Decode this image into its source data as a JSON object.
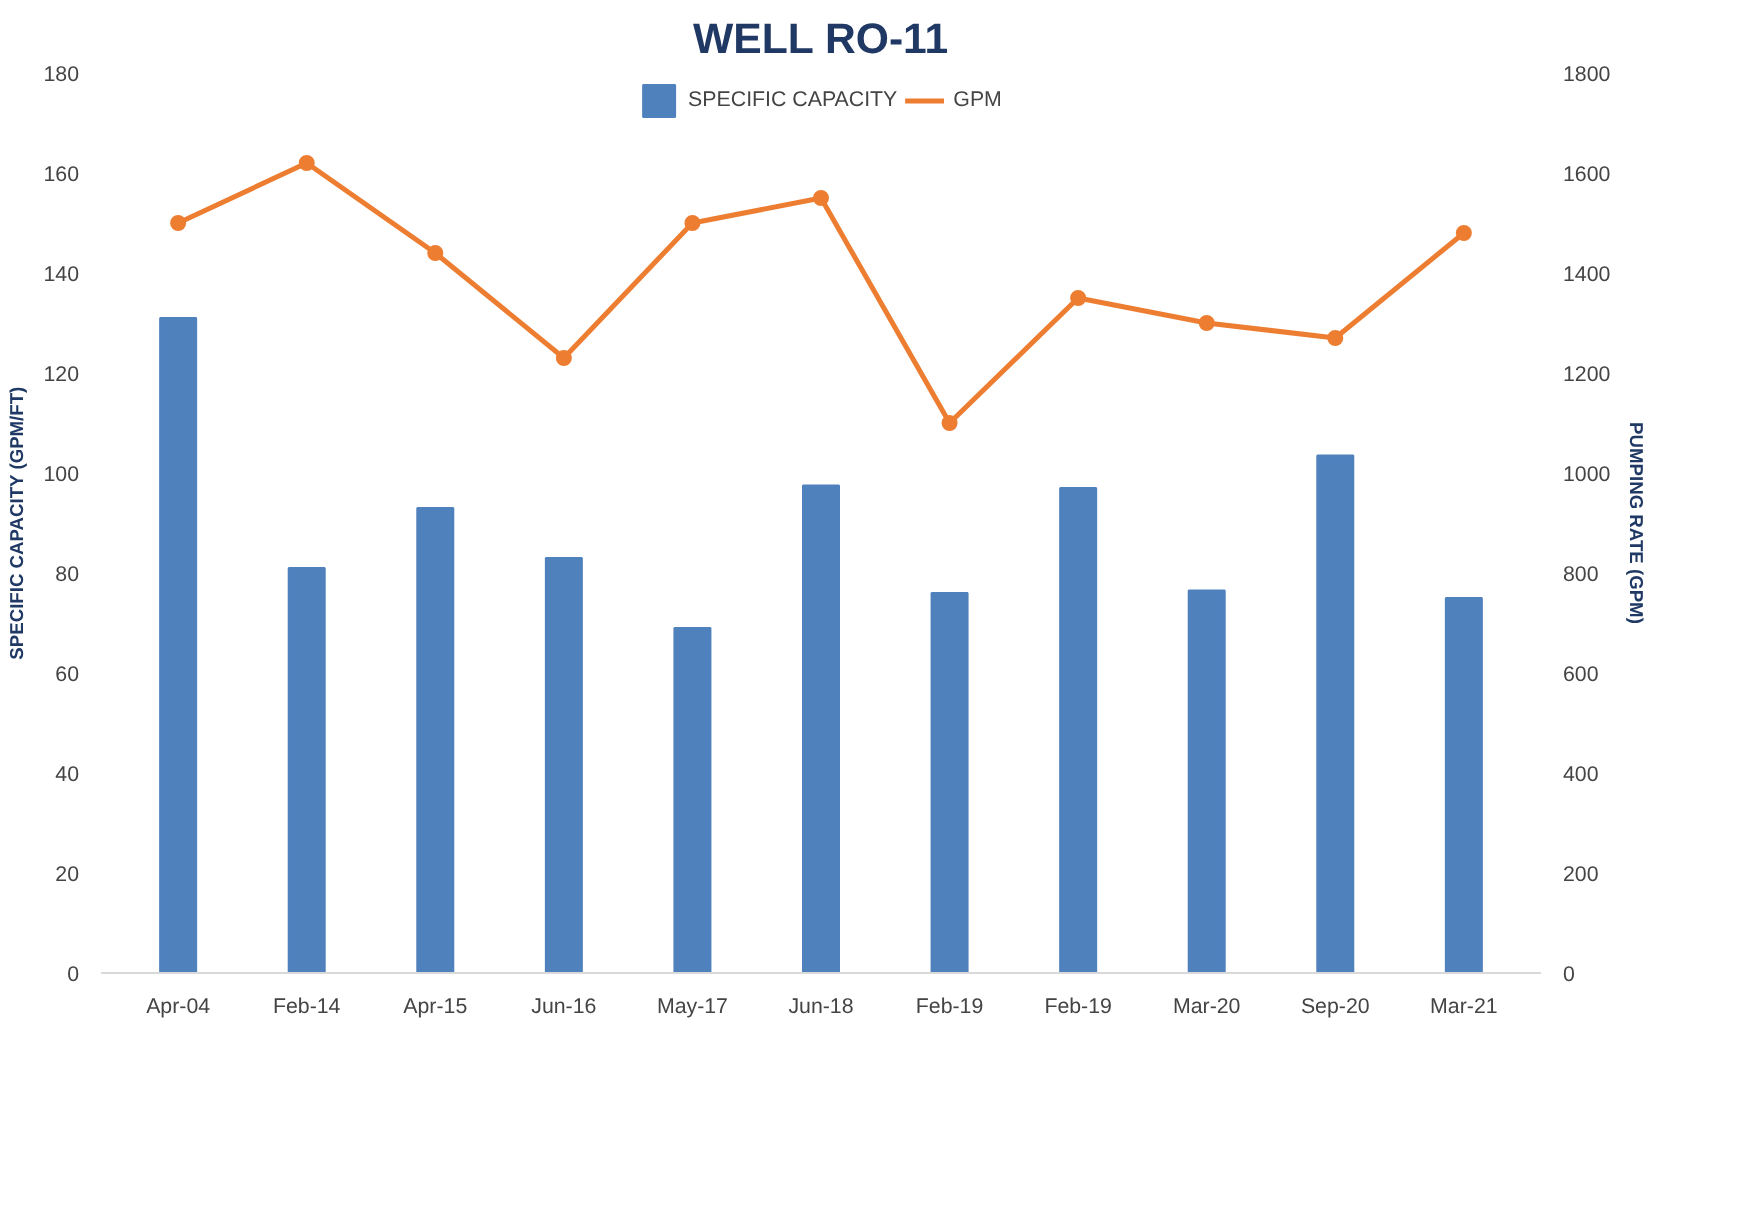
{
  "chart_data": {
    "type": "bar",
    "title": "WELL RO-11",
    "ylabel": "SPECIFIC CAPACITY (GPM/FT)",
    "y2label": "PUMPING RATE (GPM)",
    "categories": [
      "Apr-04",
      "Feb-14",
      "Apr-15",
      "Jun-16",
      "May-17",
      "Jun-18",
      "Feb-19",
      "Feb-19",
      "Mar-20",
      "Sep-20",
      "Mar-21"
    ],
    "series": [
      {
        "name": "SPECIFIC CAPACITY",
        "color": "#4f81bd",
        "values": [
          131,
          81,
          93,
          83,
          69,
          97.5,
          76,
          97,
          76.5,
          103.5,
          75
        ]
      },
      {
        "name": "GPM",
        "type": "line",
        "axis": "y2",
        "color": "#ed7d31",
        "marker": "circle",
        "values": [
          1500,
          1620,
          1440,
          1230,
          1500,
          1550,
          1100,
          1350,
          1300,
          1270,
          1480
        ]
      }
    ],
    "ylim": [
      0,
      180
    ],
    "yticks": [
      0,
      20,
      40,
      60,
      80,
      100,
      120,
      140,
      160,
      180
    ],
    "y2lim": [
      0,
      1800
    ],
    "y2ticks": [
      0,
      200,
      400,
      600,
      800,
      1000,
      1200,
      1400,
      1600,
      1800
    ],
    "grid": false,
    "legend": "top"
  }
}
